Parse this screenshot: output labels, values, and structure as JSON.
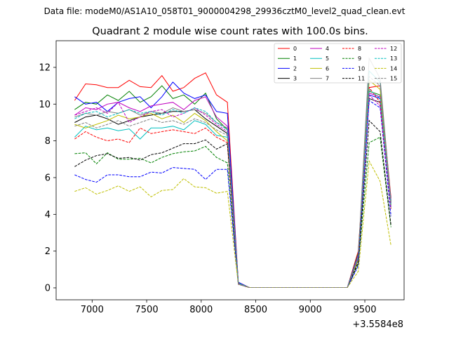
{
  "chart_data": {
    "type": "line",
    "suptitle": "Data file: modeM0/AS1A10_058T01_9000004298_29936cztM0_level2_quad_clean.evt",
    "title": "Quadrant 2 module wise count rates with 100.0s bins.",
    "xlabel": "",
    "ylabel": "",
    "x_offset_label": "+3.5584e8",
    "xlim": [
      6670,
      9860
    ],
    "ylim": [
      -0.65,
      13.45
    ],
    "xticks": [
      7000,
      7500,
      8000,
      8500,
      9000,
      9500
    ],
    "yticks": [
      0,
      2,
      4,
      6,
      8,
      10,
      12
    ],
    "grid": false,
    "legend": {
      "position": "top-right",
      "columns": 4
    },
    "x": [
      6840,
      6940,
      7040,
      7140,
      7240,
      7340,
      7440,
      7540,
      7640,
      7740,
      7840,
      7940,
      8040,
      8140,
      8240,
      8340,
      8440,
      8540,
      8640,
      8740,
      8840,
      8940,
      9040,
      9140,
      9240,
      9340,
      9440,
      9540,
      9640,
      9740
    ],
    "series": [
      {
        "name": "0",
        "color": "#ff0000",
        "dash": "solid",
        "values": [
          10.2,
          11.1,
          11.05,
          10.9,
          10.9,
          11.3,
          10.95,
          10.9,
          11.55,
          10.7,
          10.9,
          11.4,
          11.7,
          10.5,
          10.1,
          0.3,
          0.02,
          0.02,
          0.02,
          0.02,
          0.02,
          0.02,
          0.02,
          0.02,
          0.02,
          0.02,
          2.0,
          10.9,
          11.0,
          4.9
        ]
      },
      {
        "name": "1",
        "color": "#008000",
        "dash": "solid",
        "values": [
          9.7,
          10.1,
          10.0,
          10.5,
          10.2,
          10.7,
          10.1,
          10.4,
          11.0,
          10.3,
          10.5,
          10.0,
          10.6,
          9.2,
          8.6,
          0.25,
          0.02,
          0.02,
          0.02,
          0.02,
          0.02,
          0.02,
          0.02,
          0.02,
          0.02,
          0.02,
          1.9,
          10.7,
          10.5,
          4.7
        ]
      },
      {
        "name": "2",
        "color": "#0000ff",
        "dash": "solid",
        "values": [
          10.4,
          10.0,
          10.1,
          9.6,
          10.1,
          10.3,
          10.4,
          9.8,
          10.4,
          11.2,
          10.6,
          10.3,
          10.5,
          9.6,
          9.5,
          0.3,
          0.02,
          0.02,
          0.02,
          0.02,
          0.02,
          0.02,
          0.02,
          0.02,
          0.02,
          0.02,
          1.8,
          10.5,
          10.3,
          4.8
        ]
      },
      {
        "name": "3",
        "color": "#000000",
        "dash": "solid",
        "values": [
          9.0,
          9.3,
          9.4,
          9.2,
          8.9,
          9.1,
          9.3,
          9.4,
          9.5,
          9.6,
          9.6,
          9.7,
          9.2,
          8.8,
          8.4,
          0.25,
          0.02,
          0.02,
          0.02,
          0.02,
          0.02,
          0.02,
          0.02,
          0.02,
          0.02,
          0.02,
          1.7,
          10.3,
          10.1,
          4.6
        ]
      },
      {
        "name": "4",
        "color": "#bf00bf",
        "dash": "solid",
        "values": [
          9.4,
          9.8,
          9.7,
          10.0,
          10.1,
          9.8,
          9.6,
          9.9,
          10.0,
          10.1,
          9.7,
          10.2,
          10.4,
          9.3,
          8.8,
          0.25,
          0.02,
          0.02,
          0.02,
          0.02,
          0.02,
          0.02,
          0.02,
          0.02,
          0.02,
          0.02,
          1.8,
          10.6,
          10.4,
          4.7
        ]
      },
      {
        "name": "5",
        "color": "#00bfbf",
        "dash": "solid",
        "values": [
          8.2,
          8.8,
          8.6,
          8.7,
          8.55,
          8.65,
          8.1,
          8.7,
          8.7,
          8.8,
          8.6,
          9.1,
          8.9,
          8.3,
          8.2,
          0.2,
          0.02,
          0.02,
          0.02,
          0.02,
          0.02,
          0.02,
          0.02,
          0.02,
          0.02,
          0.02,
          1.6,
          11.8,
          11.2,
          4.4
        ]
      },
      {
        "name": "6",
        "color": "#bfbf00",
        "dash": "solid",
        "values": [
          8.9,
          8.7,
          8.9,
          9.1,
          9.4,
          9.2,
          9.3,
          9.5,
          9.2,
          9.4,
          9.0,
          9.5,
          9.1,
          8.5,
          8.0,
          0.2,
          0.02,
          0.02,
          0.02,
          0.02,
          0.02,
          0.02,
          0.02,
          0.02,
          0.02,
          0.02,
          1.5,
          11.3,
          10.8,
          4.3
        ]
      },
      {
        "name": "7",
        "color": "#808080",
        "dash": "solid",
        "values": [
          9.3,
          9.5,
          9.4,
          9.6,
          9.5,
          9.7,
          9.4,
          9.6,
          9.5,
          9.8,
          9.6,
          9.7,
          9.5,
          9.0,
          8.7,
          0.25,
          0.02,
          0.02,
          0.02,
          0.02,
          0.02,
          0.02,
          0.02,
          0.02,
          0.02,
          0.02,
          1.7,
          12.5,
          11.4,
          4.7
        ]
      },
      {
        "name": "8",
        "color": "#ff0000",
        "dash": "dashed",
        "values": [
          8.1,
          8.5,
          8.2,
          8.0,
          8.1,
          7.9,
          8.7,
          8.4,
          8.5,
          8.6,
          8.5,
          8.4,
          8.7,
          8.2,
          7.9,
          0.2,
          0.02,
          0.02,
          0.02,
          0.02,
          0.02,
          0.02,
          0.02,
          0.02,
          0.02,
          0.02,
          1.6,
          10.9,
          10.1,
          4.3
        ]
      },
      {
        "name": "9",
        "color": "#008000",
        "dash": "dashed",
        "values": [
          7.3,
          7.35,
          6.75,
          7.35,
          7.0,
          7.0,
          7.05,
          6.8,
          7.1,
          7.3,
          7.4,
          7.45,
          7.7,
          7.1,
          6.8,
          0.2,
          0.02,
          0.02,
          0.02,
          0.02,
          0.02,
          0.02,
          0.02,
          0.02,
          0.02,
          0.02,
          1.3,
          7.9,
          8.2,
          3.3
        ]
      },
      {
        "name": "10",
        "color": "#0000ff",
        "dash": "dashed",
        "values": [
          6.15,
          5.9,
          5.75,
          6.15,
          6.15,
          6.05,
          6.05,
          6.3,
          6.25,
          6.55,
          6.5,
          6.45,
          5.9,
          6.45,
          6.45,
          0.2,
          0.02,
          0.02,
          0.02,
          0.02,
          0.02,
          0.02,
          0.02,
          0.02,
          0.02,
          0.02,
          1.2,
          10.2,
          9.8,
          3.9
        ]
      },
      {
        "name": "11",
        "color": "#000000",
        "dash": "dashed",
        "values": [
          6.6,
          6.95,
          7.2,
          7.3,
          7.05,
          7.1,
          6.95,
          7.25,
          7.35,
          7.6,
          7.85,
          7.85,
          8.05,
          7.55,
          7.85,
          0.2,
          0.02,
          0.02,
          0.02,
          0.02,
          0.02,
          0.02,
          0.02,
          0.02,
          0.02,
          0.02,
          1.4,
          9.1,
          8.5,
          3.4
        ]
      },
      {
        "name": "12",
        "color": "#bf00bf",
        "dash": "dashed",
        "values": [
          9.4,
          9.6,
          9.8,
          9.5,
          10.1,
          9.0,
          9.3,
          9.6,
          9.7,
          9.3,
          9.5,
          9.8,
          9.4,
          8.9,
          8.5,
          0.2,
          0.02,
          0.02,
          0.02,
          0.02,
          0.02,
          0.02,
          0.02,
          0.02,
          0.02,
          0.02,
          1.7,
          10.5,
          9.9,
          4.3
        ]
      },
      {
        "name": "13",
        "color": "#00bfbf",
        "dash": "dashed",
        "values": [
          9.2,
          9.5,
          9.6,
          9.3,
          9.5,
          9.7,
          9.5,
          9.6,
          9.4,
          9.7,
          9.5,
          9.8,
          9.6,
          9.0,
          8.6,
          0.25,
          0.02,
          0.02,
          0.02,
          0.02,
          0.02,
          0.02,
          0.02,
          0.02,
          0.02,
          0.02,
          1.7,
          10.8,
          10.3,
          4.5
        ]
      },
      {
        "name": "14",
        "color": "#bfbf00",
        "dash": "dashed",
        "values": [
          5.25,
          5.45,
          5.1,
          5.3,
          5.55,
          5.25,
          5.5,
          4.95,
          5.3,
          5.35,
          5.95,
          5.5,
          5.45,
          5.15,
          5.25,
          0.2,
          0.02,
          0.02,
          0.02,
          0.02,
          0.02,
          0.02,
          0.02,
          0.02,
          0.02,
          0.02,
          0.9,
          6.9,
          5.8,
          2.3
        ]
      },
      {
        "name": "15",
        "color": "#808080",
        "dash": "dashed",
        "values": [
          8.8,
          9.0,
          8.7,
          8.9,
          9.1,
          8.8,
          9.0,
          9.2,
          9.0,
          9.1,
          8.9,
          9.2,
          9.0,
          8.6,
          8.3,
          0.2,
          0.02,
          0.02,
          0.02,
          0.02,
          0.02,
          0.02,
          0.02,
          0.02,
          0.02,
          0.02,
          1.6,
          11.5,
          11.0,
          4.5
        ]
      }
    ]
  }
}
